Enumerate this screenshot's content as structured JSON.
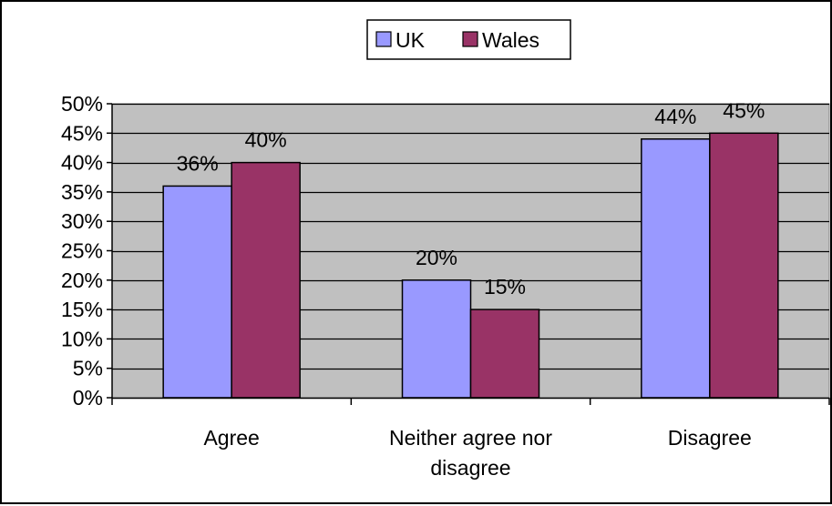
{
  "chart_data": {
    "type": "bar",
    "title": "",
    "xlabel": "",
    "ylabel": "",
    "categories": [
      "Agree",
      "Neither agree nor disagree",
      "Disagree"
    ],
    "category_lines": [
      [
        "Agree"
      ],
      [
        "Neither agree nor",
        "disagree"
      ],
      [
        "Disagree"
      ]
    ],
    "series": [
      {
        "name": "UK",
        "color": "#9999FF",
        "values": [
          36,
          20,
          44
        ],
        "data_labels": [
          "36%",
          "20%",
          "44%"
        ]
      },
      {
        "name": "Wales",
        "color": "#993366",
        "values": [
          40,
          15,
          45
        ],
        "data_labels": [
          "40%",
          "15%",
          "45%"
        ]
      }
    ],
    "ylim": [
      0,
      50
    ],
    "y_ticks": [
      0,
      5,
      10,
      15,
      20,
      25,
      30,
      35,
      40,
      45,
      50
    ],
    "y_tick_labels": [
      "0%",
      "5%",
      "10%",
      "15%",
      "20%",
      "25%",
      "30%",
      "35%",
      "40%",
      "45%",
      "50%"
    ],
    "grid": true,
    "plot_background": "#C0C0C0",
    "legend": {
      "position": "top-center",
      "entries": [
        "UK",
        "Wales"
      ]
    }
  }
}
